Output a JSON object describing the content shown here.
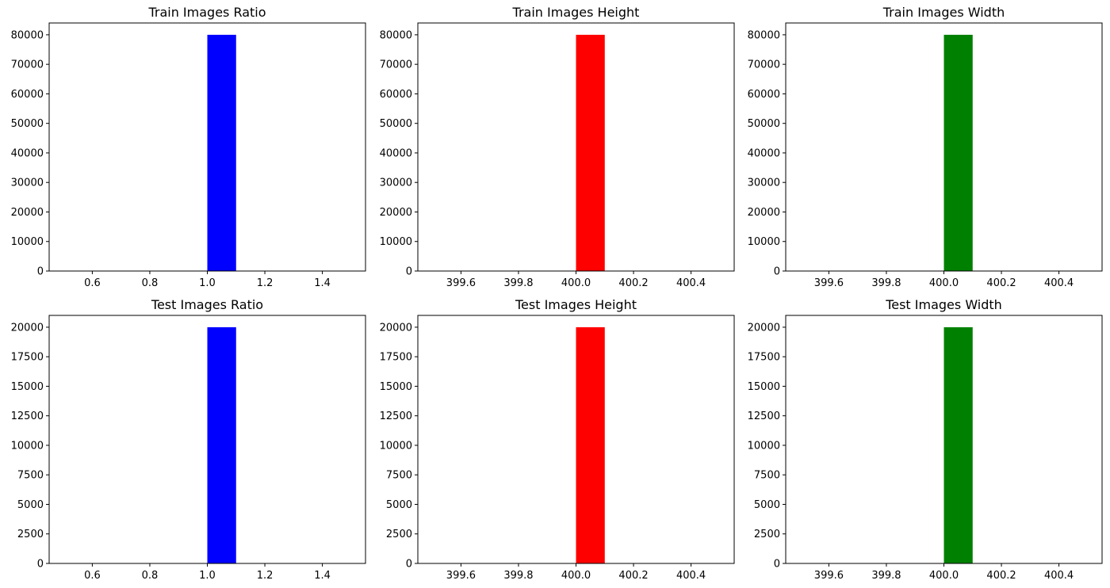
{
  "chart_data": [
    {
      "type": "bar",
      "title": "Train Images Ratio",
      "color": "#0000ff",
      "bins": [
        {
          "x0": 1.0,
          "x1": 1.1,
          "count": 80000
        }
      ],
      "xlim": [
        0.45,
        1.55
      ],
      "ylim": [
        0,
        84000
      ],
      "xticks": [
        0.6,
        0.8,
        1.0,
        1.2,
        1.4
      ],
      "xtick_labels": [
        "0.6",
        "0.8",
        "1.0",
        "1.2",
        "1.4"
      ],
      "yticks": [
        0,
        10000,
        20000,
        30000,
        40000,
        50000,
        60000,
        70000,
        80000
      ],
      "ytick_labels": [
        "0",
        "10000",
        "20000",
        "30000",
        "40000",
        "50000",
        "60000",
        "70000",
        "80000"
      ]
    },
    {
      "type": "bar",
      "title": "Train Images Height",
      "color": "#ff0000",
      "bins": [
        {
          "x0": 400.0,
          "x1": 400.1,
          "count": 80000
        }
      ],
      "xlim": [
        399.45,
        400.55
      ],
      "ylim": [
        0,
        84000
      ],
      "xticks": [
        399.6,
        399.8,
        400.0,
        400.2,
        400.4
      ],
      "xtick_labels": [
        "399.6",
        "399.8",
        "400.0",
        "400.2",
        "400.4"
      ],
      "yticks": [
        0,
        10000,
        20000,
        30000,
        40000,
        50000,
        60000,
        70000,
        80000
      ],
      "ytick_labels": [
        "0",
        "10000",
        "20000",
        "30000",
        "40000",
        "50000",
        "60000",
        "70000",
        "80000"
      ]
    },
    {
      "type": "bar",
      "title": "Train Images Width",
      "color": "#008000",
      "bins": [
        {
          "x0": 400.0,
          "x1": 400.1,
          "count": 80000
        }
      ],
      "xlim": [
        399.45,
        400.55
      ],
      "ylim": [
        0,
        84000
      ],
      "xticks": [
        399.6,
        399.8,
        400.0,
        400.2,
        400.4
      ],
      "xtick_labels": [
        "399.6",
        "399.8",
        "400.0",
        "400.2",
        "400.4"
      ],
      "yticks": [
        0,
        10000,
        20000,
        30000,
        40000,
        50000,
        60000,
        70000,
        80000
      ],
      "ytick_labels": [
        "0",
        "10000",
        "20000",
        "30000",
        "40000",
        "50000",
        "60000",
        "70000",
        "80000"
      ]
    },
    {
      "type": "bar",
      "title": "Test Images Ratio",
      "color": "#0000ff",
      "bins": [
        {
          "x0": 1.0,
          "x1": 1.1,
          "count": 20000
        }
      ],
      "xlim": [
        0.45,
        1.55
      ],
      "ylim": [
        0,
        21000
      ],
      "xticks": [
        0.6,
        0.8,
        1.0,
        1.2,
        1.4
      ],
      "xtick_labels": [
        "0.6",
        "0.8",
        "1.0",
        "1.2",
        "1.4"
      ],
      "yticks": [
        0,
        2500,
        5000,
        7500,
        10000,
        12500,
        15000,
        17500,
        20000
      ],
      "ytick_labels": [
        "0",
        "2500",
        "5000",
        "7500",
        "10000",
        "12500",
        "15000",
        "17500",
        "20000"
      ]
    },
    {
      "type": "bar",
      "title": "Test Images Height",
      "color": "#ff0000",
      "bins": [
        {
          "x0": 400.0,
          "x1": 400.1,
          "count": 20000
        }
      ],
      "xlim": [
        399.45,
        400.55
      ],
      "ylim": [
        0,
        21000
      ],
      "xticks": [
        399.6,
        399.8,
        400.0,
        400.2,
        400.4
      ],
      "xtick_labels": [
        "399.6",
        "399.8",
        "400.0",
        "400.2",
        "400.4"
      ],
      "yticks": [
        0,
        2500,
        5000,
        7500,
        10000,
        12500,
        15000,
        17500,
        20000
      ],
      "ytick_labels": [
        "0",
        "2500",
        "5000",
        "7500",
        "10000",
        "12500",
        "15000",
        "17500",
        "20000"
      ]
    },
    {
      "type": "bar",
      "title": "Test Images Width",
      "color": "#008000",
      "bins": [
        {
          "x0": 400.0,
          "x1": 400.1,
          "count": 20000
        }
      ],
      "xlim": [
        399.45,
        400.55
      ],
      "ylim": [
        0,
        21000
      ],
      "xticks": [
        399.6,
        399.8,
        400.0,
        400.2,
        400.4
      ],
      "xtick_labels": [
        "399.6",
        "399.8",
        "400.0",
        "400.2",
        "400.4"
      ],
      "yticks": [
        0,
        2500,
        5000,
        7500,
        10000,
        12500,
        15000,
        17500,
        20000
      ],
      "ytick_labels": [
        "0",
        "2500",
        "5000",
        "7500",
        "10000",
        "12500",
        "15000",
        "17500",
        "20000"
      ]
    }
  ]
}
